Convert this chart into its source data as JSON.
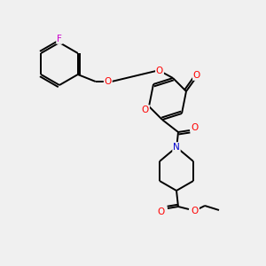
{
  "background_color": "#f0f0f0",
  "bond_color": "#000000",
  "atom_colors": {
    "O": "#ff0000",
    "N": "#0000cd",
    "F": "#cc00cc",
    "C": "#000000"
  },
  "figsize": [
    3.0,
    3.0
  ],
  "dpi": 100
}
